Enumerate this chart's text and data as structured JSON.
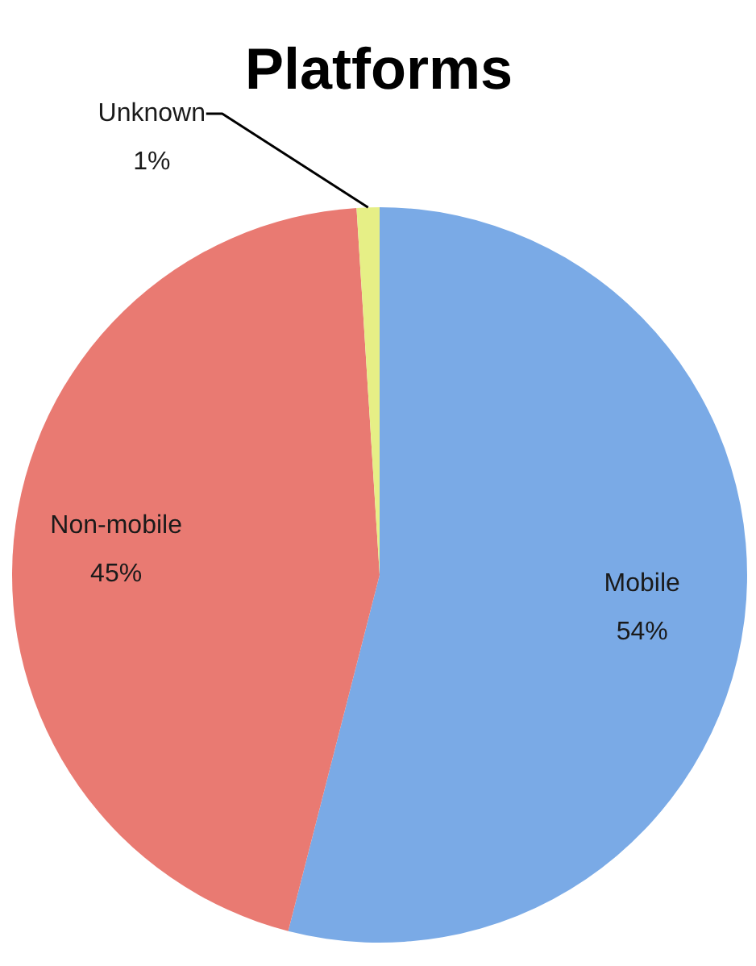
{
  "chart_data": {
    "type": "pie",
    "title": "Platforms",
    "categories": [
      "Mobile",
      "Non-mobile",
      "Unknown"
    ],
    "values": [
      54,
      45,
      1
    ],
    "colors": [
      "#7aaae6",
      "#e97a72",
      "#e6ef86"
    ],
    "value_labels": [
      "54%",
      "45%",
      "1%"
    ]
  }
}
